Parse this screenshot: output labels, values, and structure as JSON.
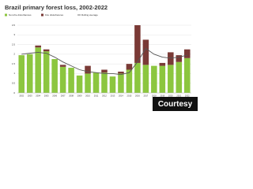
{
  "chart_data": {
    "type": "bar",
    "stacked": true,
    "title": "Brazil primary forest loss, 2002-2022",
    "categories": [
      "2002",
      "2003",
      "2004",
      "2005",
      "2006",
      "2007",
      "2008",
      "2009",
      "2010",
      "2011",
      "2012",
      "2013",
      "2014",
      "2015",
      "2016",
      "2017",
      "2018",
      "2019",
      "2020",
      "2021",
      "2022"
    ],
    "series": [
      {
        "name": "Non-fire disturbances",
        "color": "#8cc63f",
        "values": [
          1.95,
          2.0,
          2.35,
          2.15,
          1.75,
          1.35,
          1.3,
          0.9,
          1.0,
          1.05,
          1.05,
          0.85,
          1.0,
          1.2,
          1.55,
          1.45,
          1.4,
          1.4,
          1.45,
          1.6,
          1.8
        ]
      },
      {
        "name": "Fire disturbances",
        "color": "#7a3a36",
        "values": [
          0,
          0,
          0.1,
          0.1,
          0,
          0.1,
          0,
          0,
          0.4,
          0,
          0.15,
          0,
          0.1,
          0.3,
          1.95,
          1.3,
          0,
          0.15,
          0.65,
          0.35,
          0.45
        ]
      },
      {
        "name": "Rolling average",
        "type": "line",
        "color": "#555555",
        "values": [
          2.0,
          2.05,
          2.1,
          2.05,
          1.85,
          1.6,
          1.4,
          1.2,
          1.1,
          1.05,
          1.0,
          1.0,
          0.95,
          1.05,
          1.6,
          2.3,
          2.0,
          1.85,
          1.8,
          1.85,
          1.95
        ]
      }
    ],
    "ylim": [
      0,
      3.5
    ],
    "yticks": [
      0,
      0.5,
      1,
      1.5,
      2,
      2.5,
      3,
      3.5
    ],
    "grid": true
  },
  "watermark": "Courtesy"
}
